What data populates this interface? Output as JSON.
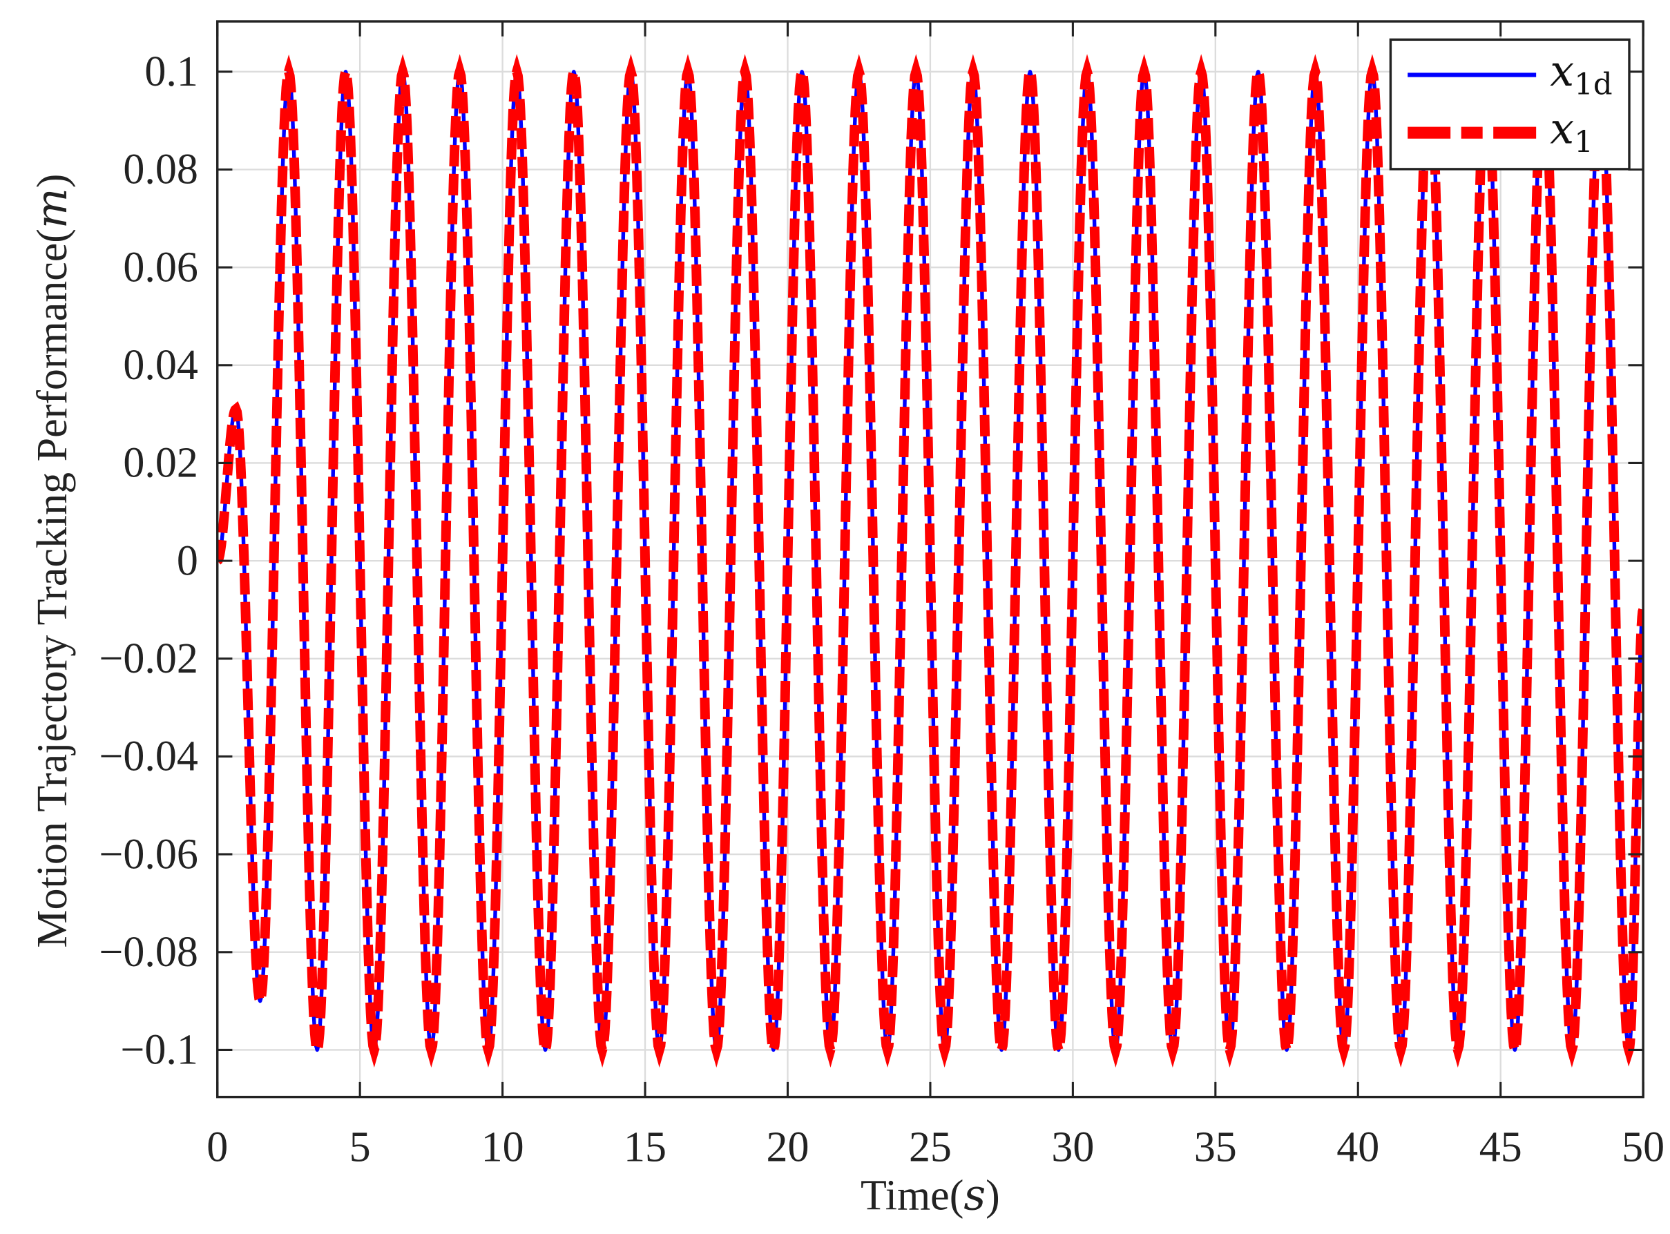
{
  "chart_data": {
    "type": "line",
    "xlabel": "Time",
    "xlabel_unit": "s",
    "ylabel": "Motion Trajectory Tracking Performance",
    "ylabel_unit": "m",
    "xlim": [
      0,
      50
    ],
    "ylim": [
      -0.11,
      0.11
    ],
    "xticks": [
      0,
      5,
      10,
      15,
      20,
      25,
      30,
      35,
      40,
      45,
      50
    ],
    "xtick_labels": [
      "0",
      "5",
      "10",
      "15",
      "20",
      "25",
      "30",
      "35",
      "40",
      "45",
      "50"
    ],
    "yticks": [
      -0.1,
      -0.08,
      -0.06,
      -0.04,
      -0.02,
      0,
      0.02,
      0.04,
      0.06,
      0.08,
      0.1
    ],
    "ytick_labels": [
      "−0.1",
      "−0.08",
      "−0.06",
      "−0.04",
      "−0.02",
      "0",
      "0.02",
      "0.04",
      "0.06",
      "0.08",
      "0.1"
    ],
    "grid": true,
    "legend_position": "top-right",
    "series": [
      {
        "name": "x1d",
        "legend_base": "x",
        "legend_sub": "1d",
        "color": "#0000ff",
        "style": "solid"
      },
      {
        "name": "x1",
        "legend_base": "x",
        "legend_sub": "1",
        "color": "#ff0000",
        "style": "dashed"
      }
    ],
    "extrema_x": [
      0,
      0.65,
      1.5,
      2.5,
      3.5,
      4.5,
      5.5,
      6.5,
      7.5,
      8.5,
      9.5,
      10.5,
      11.5,
      12.5,
      13.5,
      14.5,
      15.5,
      16.5,
      17.5,
      18.5,
      19.5,
      20.5,
      21.5,
      22.5,
      23.5,
      24.5,
      25.5,
      26.5,
      27.5,
      28.5,
      29.5,
      30.5,
      31.5,
      32.5,
      33.5,
      34.5,
      35.5,
      36.5,
      37.5,
      38.5,
      39.5,
      40.5,
      41.5,
      42.5,
      43.5,
      44.5,
      45.5,
      46.5,
      47.5,
      48.5,
      49.5,
      50
    ],
    "extrema_y": [
      0,
      0.031,
      -0.09,
      0.1,
      -0.1,
      0.1,
      -0.1,
      0.1,
      -0.1,
      0.1,
      -0.1,
      0.1,
      -0.1,
      0.1,
      -0.1,
      0.1,
      -0.1,
      0.1,
      -0.1,
      0.1,
      -0.1,
      0.1,
      -0.1,
      0.1,
      -0.1,
      0.1,
      -0.1,
      0.1,
      -0.1,
      0.1,
      -0.1,
      0.1,
      -0.1,
      0.1,
      -0.1,
      0.1,
      -0.1,
      0.1,
      -0.1,
      0.1,
      -0.1,
      0.1,
      -0.1,
      0.1,
      -0.1,
      0.1,
      -0.1,
      0.1,
      -0.1,
      0.1,
      -0.1,
      -0.01
    ]
  }
}
